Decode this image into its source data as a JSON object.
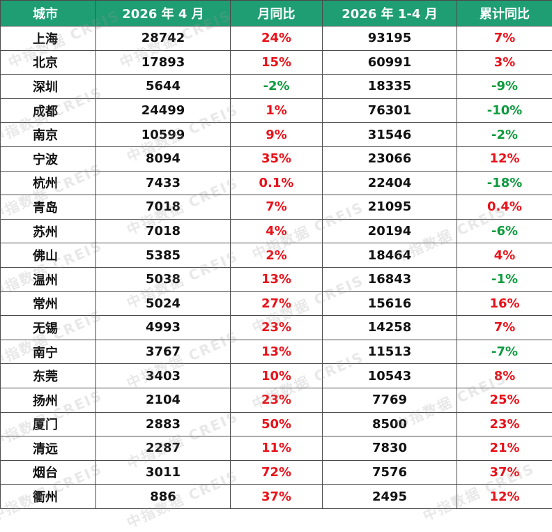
{
  "header": {
    "city": "城市",
    "april": "2026 年 4 月",
    "mom": "月同比",
    "ytd": "2026 年 1-4 月",
    "ytd_yoy": "累计同比"
  },
  "rows": [
    {
      "city": "上海",
      "april": "28742",
      "mom": "24%",
      "ytd": "93195",
      "ytd_yoy": "7%"
    },
    {
      "city": "北京",
      "april": "17893",
      "mom": "15%",
      "ytd": "60991",
      "ytd_yoy": "3%"
    },
    {
      "city": "深圳",
      "april": "5644",
      "mom": "-2%",
      "ytd": "18335",
      "ytd_yoy": "-9%"
    },
    {
      "city": "成都",
      "april": "24499",
      "mom": "1%",
      "ytd": "76301",
      "ytd_yoy": "-10%"
    },
    {
      "city": "南京",
      "april": "10599",
      "mom": "9%",
      "ytd": "31546",
      "ytd_yoy": "-2%"
    },
    {
      "city": "宁波",
      "april": "8094",
      "mom": "35%",
      "ytd": "23066",
      "ytd_yoy": "12%"
    },
    {
      "city": "杭州",
      "april": "7433",
      "mom": "0.1%",
      "ytd": "22404",
      "ytd_yoy": "-18%"
    },
    {
      "city": "青岛",
      "april": "7018",
      "mom": "7%",
      "ytd": "21095",
      "ytd_yoy": "0.4%"
    },
    {
      "city": "苏州",
      "april": "7018",
      "mom": "4%",
      "ytd": "20194",
      "ytd_yoy": "-6%"
    },
    {
      "city": "佛山",
      "april": "5385",
      "mom": "2%",
      "ytd": "18464",
      "ytd_yoy": "4%"
    },
    {
      "city": "温州",
      "april": "5038",
      "mom": "13%",
      "ytd": "16843",
      "ytd_yoy": "-1%"
    },
    {
      "city": "常州",
      "april": "5024",
      "mom": "27%",
      "ytd": "15616",
      "ytd_yoy": "16%"
    },
    {
      "city": "无锡",
      "april": "4993",
      "mom": "23%",
      "ytd": "14258",
      "ytd_yoy": "7%"
    },
    {
      "city": "南宁",
      "april": "3767",
      "mom": "13%",
      "ytd": "11513",
      "ytd_yoy": "-7%"
    },
    {
      "city": "东莞",
      "april": "3403",
      "mom": "10%",
      "ytd": "10543",
      "ytd_yoy": "8%"
    },
    {
      "city": "扬州",
      "april": "2104",
      "mom": "23%",
      "ytd": "7769",
      "ytd_yoy": "25%"
    },
    {
      "city": "厦门",
      "april": "2883",
      "mom": "50%",
      "ytd": "8500",
      "ytd_yoy": "23%"
    },
    {
      "city": "清远",
      "april": "2287",
      "mom": "11%",
      "ytd": "7830",
      "ytd_yoy": "21%"
    },
    {
      "city": "烟台",
      "april": "3011",
      "mom": "72%",
      "ytd": "7576",
      "ytd_yoy": "37%"
    },
    {
      "city": "衢州",
      "april": "886",
      "mom": "37%",
      "ytd": "2495",
      "ytd_yoy": "12%"
    }
  ],
  "watermark": "中指数据 CREIS",
  "colors": {
    "header_bg": "#1f9e73",
    "positive": "#e8121a",
    "negative": "#0e9a3e"
  }
}
